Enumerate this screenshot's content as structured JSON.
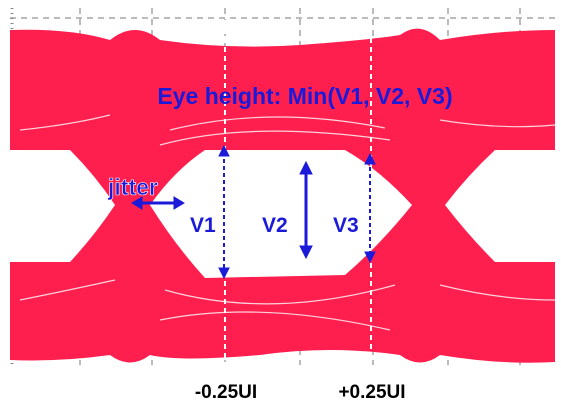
{
  "annotation": {
    "title": "Eye height: Min(V1, V2, V3)",
    "jitter": "jitter",
    "v1": "V1",
    "v2": "V2",
    "v3": "V3"
  },
  "x_labels": {
    "left": "-0.25UI",
    "right": "+0.25UI"
  }
}
